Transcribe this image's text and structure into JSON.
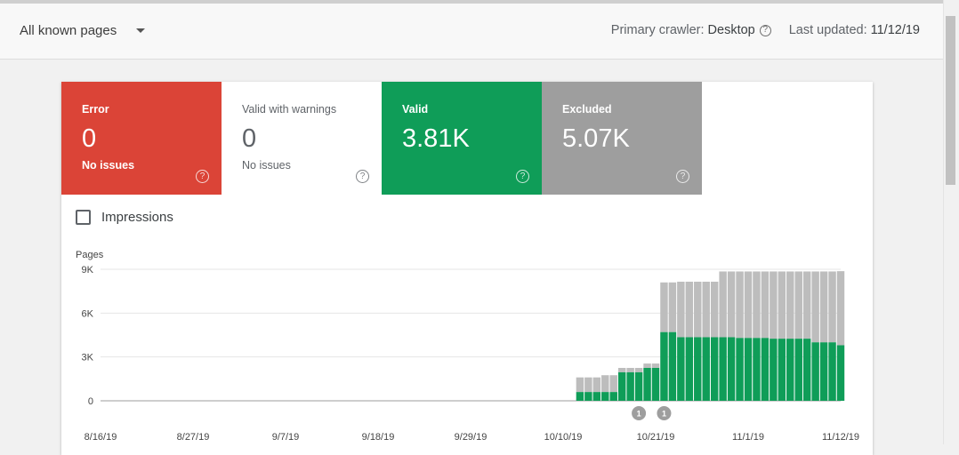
{
  "header": {
    "filter_label": "All known pages",
    "crawler_label": "Primary crawler:",
    "crawler_value": "Desktop",
    "updated_label": "Last updated:",
    "updated_value": "11/12/19"
  },
  "tiles": {
    "error": {
      "label": "Error",
      "count": "0",
      "sub": "No issues",
      "color": "#db4437"
    },
    "warnings": {
      "label": "Valid with warnings",
      "count": "0",
      "sub": "No issues",
      "color": "#ffffff"
    },
    "valid": {
      "label": "Valid",
      "count": "3.81K",
      "color": "#0f9d58"
    },
    "excluded": {
      "label": "Excluded",
      "count": "5.07K",
      "color": "#9e9e9e"
    }
  },
  "impressions": {
    "label": "Impressions",
    "checked": false
  },
  "chart_data": {
    "type": "bar",
    "stacked": true,
    "ylabel": "Pages",
    "ylim": [
      0,
      9000
    ],
    "yticks": [
      "0",
      "3K",
      "6K",
      "9K"
    ],
    "ytick_values": [
      0,
      3000,
      6000,
      9000
    ],
    "xticks": [
      "8/16/19",
      "8/27/19",
      "9/7/19",
      "9/18/19",
      "9/29/19",
      "10/10/19",
      "10/21/19",
      "11/1/19",
      "11/12/19"
    ],
    "grid": true,
    "colors": {
      "valid": "#0f9d58",
      "excluded": "#bdbdbd",
      "annotation": "#9e9e9e"
    },
    "start_date": "8/16/19",
    "dates": [
      "10/1/19",
      "10/2/19",
      "10/3/19",
      "10/4/19",
      "10/5/19",
      "10/6/19",
      "10/7/19",
      "10/8/19",
      "10/9/19",
      "10/10/19",
      "10/11/19",
      "10/12/19",
      "10/13/19",
      "10/14/19",
      "10/15/19",
      "10/16/19",
      "10/17/19",
      "10/18/19",
      "10/19/19",
      "10/20/19",
      "10/21/19",
      "10/22/19",
      "10/23/19",
      "10/24/19",
      "10/25/19",
      "10/26/19",
      "10/27/19",
      "10/28/19",
      "10/29/19",
      "10/30/19",
      "10/31/19",
      "11/1/19",
      "11/2/19",
      "11/3/19",
      "11/4/19",
      "11/5/19",
      "11/6/19",
      "11/7/19",
      "11/8/19",
      "11/9/19",
      "11/10/19",
      "11/11/19",
      "11/12/19"
    ],
    "series": [
      {
        "name": "Valid",
        "values": [
          0,
          0,
          0,
          0,
          0,
          0,
          0,
          0,
          0,
          0,
          0,
          600,
          600,
          600,
          600,
          600,
          1950,
          1950,
          1950,
          2250,
          2250,
          4700,
          4700,
          4350,
          4350,
          4350,
          4350,
          4350,
          4350,
          4350,
          4300,
          4300,
          4300,
          4300,
          4250,
          4250,
          4250,
          4250,
          4250,
          4000,
          4000,
          4000,
          3800
        ]
      },
      {
        "name": "Excluded",
        "values": [
          0,
          0,
          0,
          0,
          0,
          0,
          0,
          0,
          0,
          0,
          0,
          1000,
          1000,
          1000,
          1150,
          1150,
          300,
          300,
          300,
          300,
          300,
          3400,
          3400,
          3800,
          3800,
          3800,
          3800,
          3800,
          4500,
          4500,
          4550,
          4550,
          4550,
          4550,
          4600,
          4600,
          4600,
          4600,
          4600,
          4850,
          4850,
          4850,
          5070
        ]
      }
    ],
    "offset_days": 46,
    "annotations": [
      {
        "date": "10/19/19",
        "label": "1"
      },
      {
        "date": "10/22/19",
        "label": "1"
      }
    ]
  }
}
